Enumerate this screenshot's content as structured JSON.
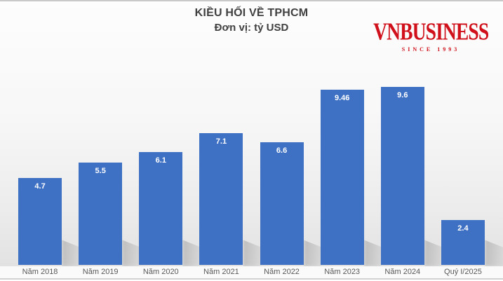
{
  "header": {
    "title": "KIỀU HỐI VỀ TPHCM",
    "subtitle": "Đơn vị: tỷ USD"
  },
  "logo": {
    "text": "VNBUSINESS",
    "tagline": "SINCE 1993",
    "color": "#d0111b"
  },
  "chart_data": {
    "type": "bar",
    "title": "KIỀU HỐI VỀ TPHCM",
    "subtitle": "Đơn vị: tỷ USD",
    "unit": "tỷ USD",
    "categories": [
      "Năm 2018",
      "Năm 2019",
      "Năm 2020",
      "Năm 2021",
      "Năm 2022",
      "Năm 2023",
      "Năm 2024",
      "Quý I/2025"
    ],
    "values": [
      4.7,
      5.5,
      6.1,
      7.1,
      6.6,
      9.46,
      9.6,
      2.4
    ],
    "value_labels": [
      "4.7",
      "5.5",
      "6.1",
      "7.1",
      "6.6",
      "9.46",
      "9.6",
      "2.4"
    ],
    "xlabel": "",
    "ylabel": "",
    "ylim": [
      0,
      9.6
    ],
    "grid": false,
    "legend": false,
    "label_position": "inside-end",
    "bar_color": "#3e70c3",
    "value_text_color": "#ffffff",
    "axis_text_color": "#595959"
  },
  "colors": {
    "bar": "#3e70c3",
    "title_text": "#404040",
    "axis_text": "#595959",
    "logo_red": "#d0111b",
    "background_top": "#fdfdfd",
    "background_bottom": "#e2e2e2",
    "border": "#c9c9c9"
  }
}
